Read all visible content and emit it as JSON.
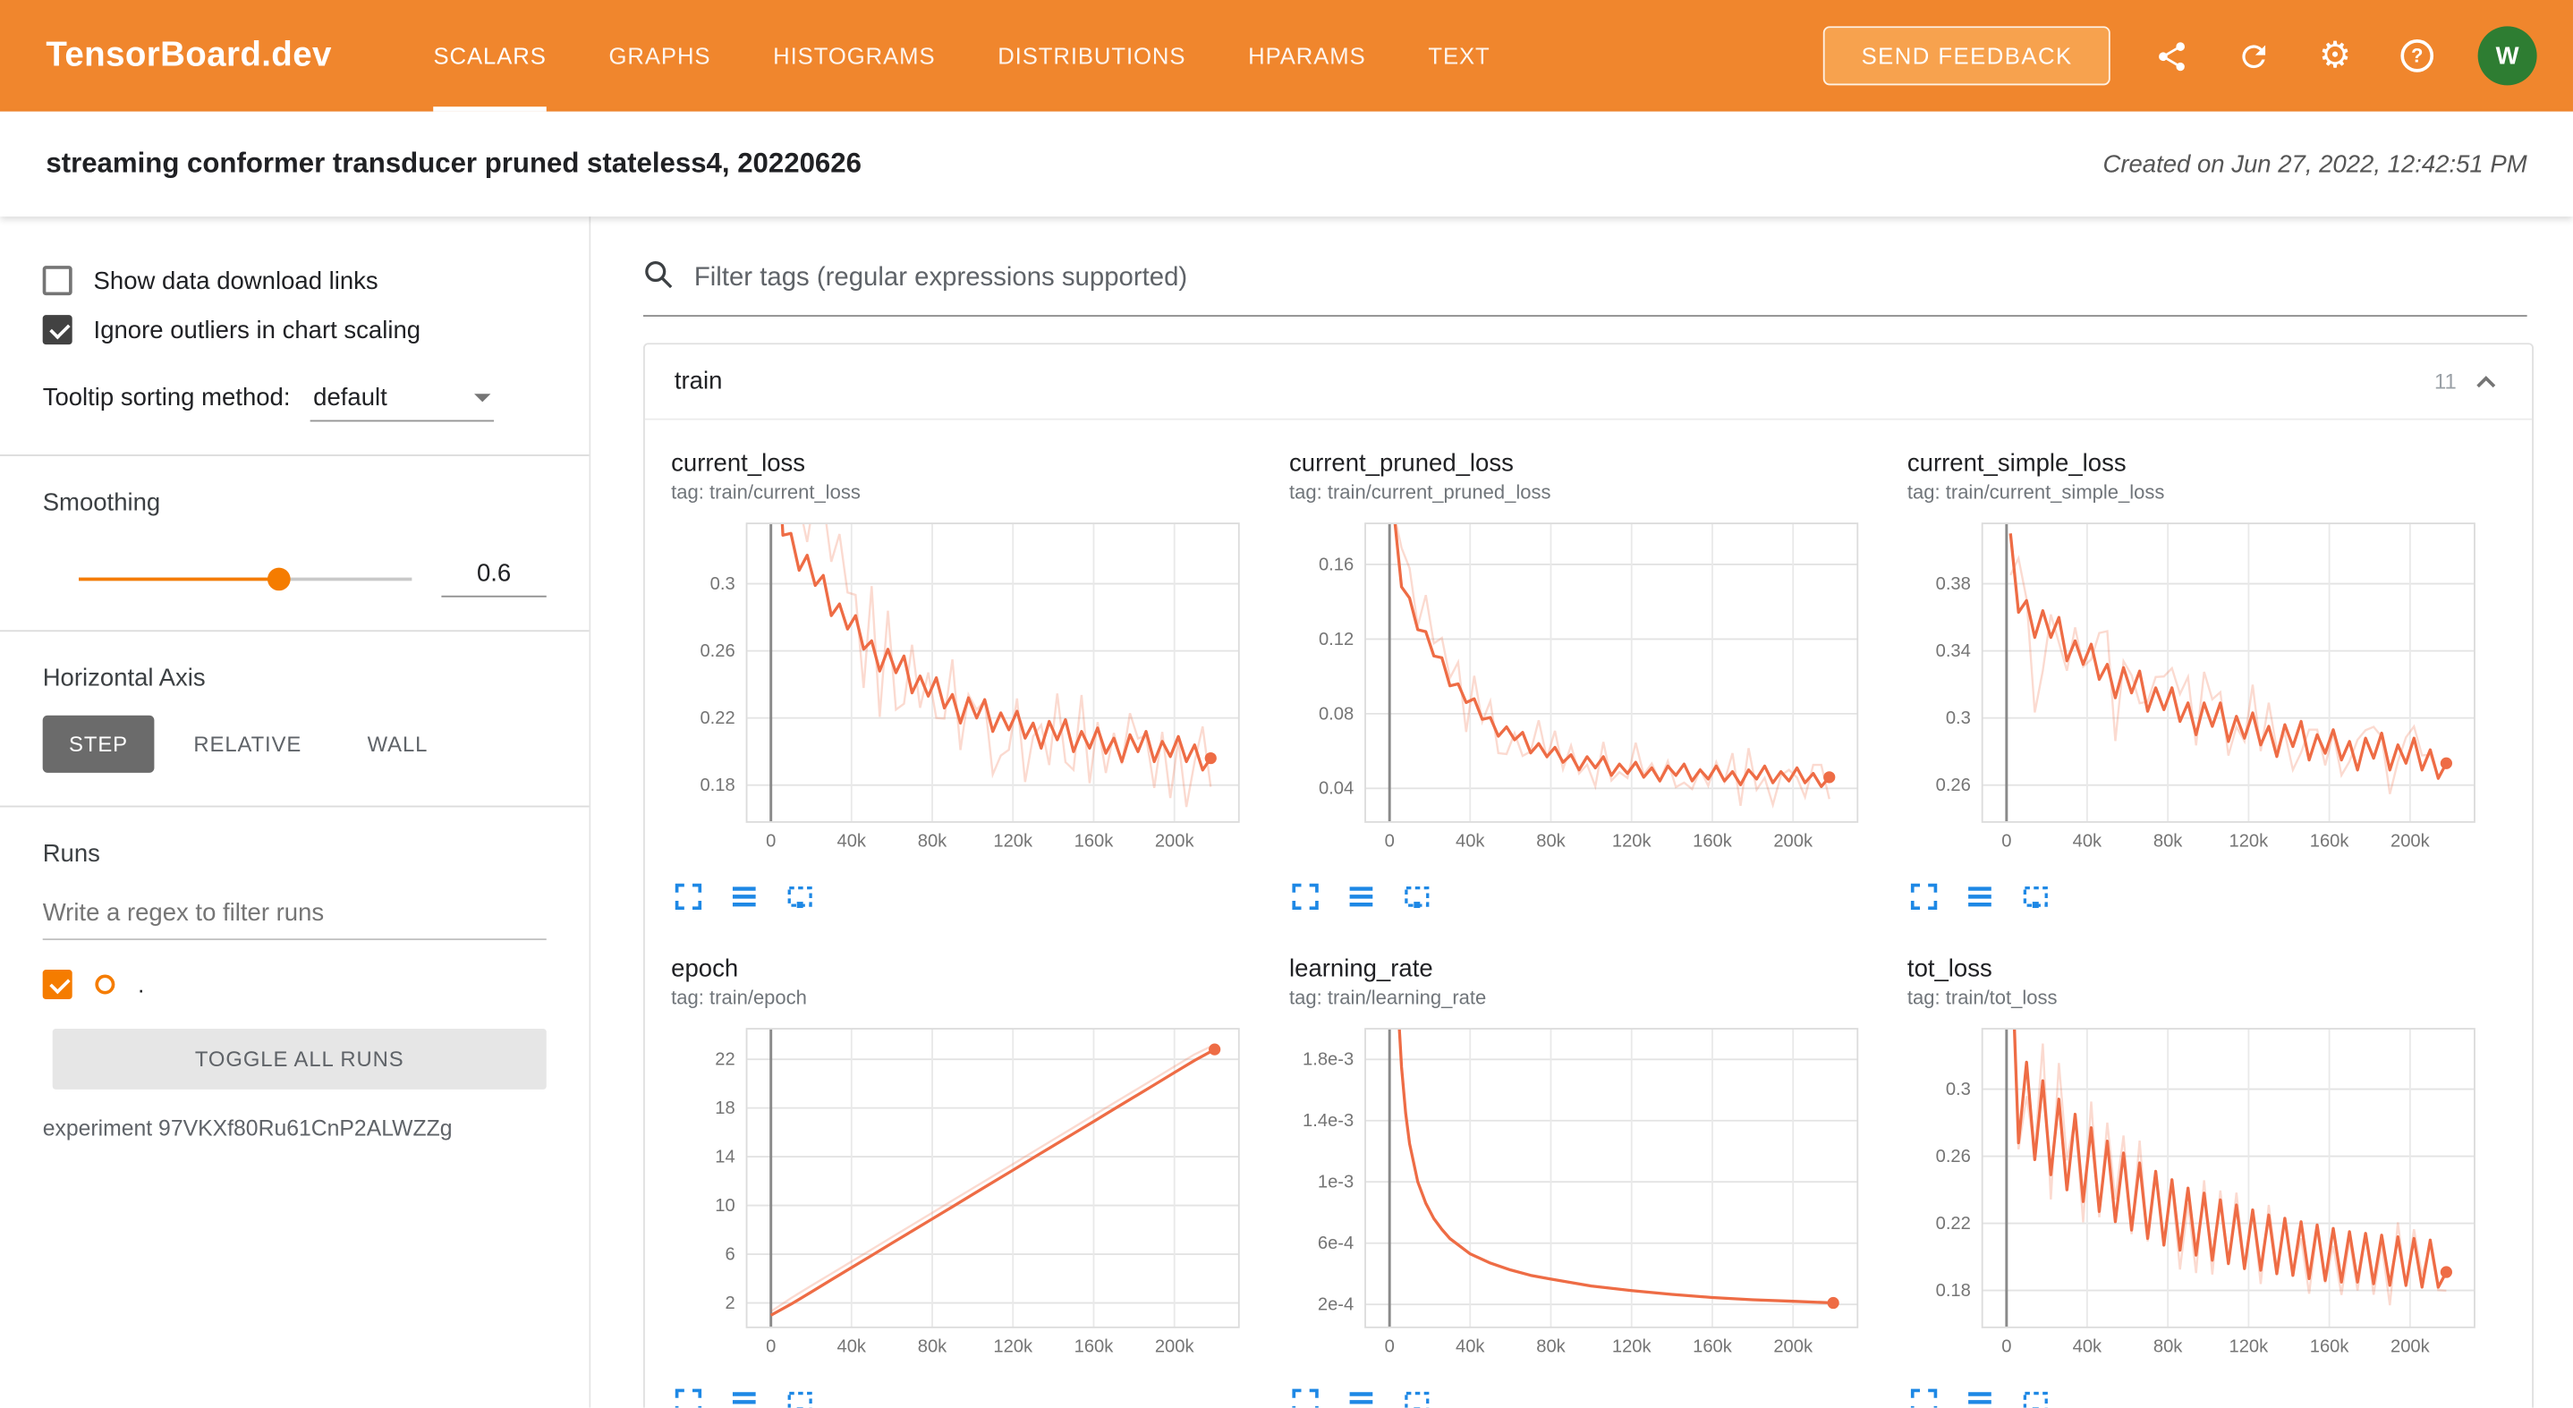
{
  "header": {
    "logo": "TensorBoard.dev",
    "tabs": [
      {
        "label": "SCALARS",
        "active": true
      },
      {
        "label": "GRAPHS",
        "active": false
      },
      {
        "label": "HISTOGRAMS",
        "active": false
      },
      {
        "label": "DISTRIBUTIONS",
        "active": false
      },
      {
        "label": "HPARAMS",
        "active": false
      },
      {
        "label": "TEXT",
        "active": false
      }
    ],
    "send_feedback": "SEND FEEDBACK",
    "icons": [
      "share-icon",
      "refresh-icon",
      "settings-icon",
      "help-icon"
    ],
    "help_glyph": "?",
    "avatar_letter": "W"
  },
  "experiment_bar": {
    "title": "streaming conformer transducer pruned stateless4, 20220626",
    "created": "Created on Jun 27, 2022, 12:42:51 PM"
  },
  "sidebar": {
    "show_download_label": "Show data download links",
    "show_download_checked": false,
    "ignore_outliers_label": "Ignore outliers in chart scaling",
    "ignore_outliers_checked": true,
    "tooltip_sort_label": "Tooltip sorting method:",
    "tooltip_sort_value": "default",
    "smoothing_label": "Smoothing",
    "smoothing_value": "0.6",
    "horizontal_axis_label": "Horizontal Axis",
    "axis_options": [
      "STEP",
      "RELATIVE",
      "WALL"
    ],
    "axis_selected": "STEP",
    "runs_label": "Runs",
    "runs_filter_placeholder": "Write a regex to filter runs",
    "run_item": {
      "name": ".",
      "checked": true
    },
    "toggle_all_label": "TOGGLE ALL RUNS",
    "experiment_id_text": "experiment 97VKXf80Ru61CnP2ALWZZg"
  },
  "main": {
    "filter_placeholder": "Filter tags (regular expressions supported)",
    "group": {
      "name": "train",
      "count": "11"
    }
  },
  "colors": {
    "header_bg": "#f0862d",
    "accent_orange": "#f57c00",
    "line": "#ee6c45",
    "toolbar_blue": "#1e88e5",
    "avatar_bg": "#2e7d32"
  },
  "chart_data": {
    "x_axis": {
      "xlim": [
        -12000,
        232000
      ],
      "ticks": [
        0,
        40000,
        80000,
        120000,
        160000,
        200000
      ],
      "labels": [
        "0",
        "40k",
        "80k",
        "120k",
        "160k",
        "200k"
      ],
      "xlabel": "step"
    },
    "toolbar_icons": [
      "expand-icon",
      "data-table-icon",
      "fit-domain-icon"
    ],
    "charts": [
      {
        "id": "current_loss",
        "type": "line",
        "title": "current_loss",
        "tag_line": "tag: train/current_loss",
        "x_start": 2000,
        "x_step": 4000,
        "values": [
          0.42,
          0.329,
          0.33,
          0.308,
          0.317,
          0.299,
          0.305,
          0.281,
          0.288,
          0.273,
          0.281,
          0.261,
          0.266,
          0.248,
          0.261,
          0.247,
          0.257,
          0.235,
          0.245,
          0.233,
          0.244,
          0.226,
          0.234,
          0.217,
          0.232,
          0.22,
          0.231,
          0.212,
          0.223,
          0.213,
          0.224,
          0.208,
          0.217,
          0.202,
          0.218,
          0.207,
          0.219,
          0.2,
          0.212,
          0.202,
          0.214,
          0.199,
          0.208,
          0.194,
          0.21,
          0.2,
          0.212,
          0.194,
          0.206,
          0.197,
          0.209,
          0.194,
          0.204,
          0.189,
          0.196
        ],
        "raw_amplitude": 0.028,
        "ylim": [
          0.158,
          0.336
        ],
        "yticks": [
          0.18,
          0.22,
          0.26,
          0.3
        ],
        "ytick_labels": [
          "0.18",
          "0.22",
          "0.26",
          "0.3"
        ],
        "end_dot": true
      },
      {
        "id": "current_pruned_loss",
        "type": "line",
        "title": "current_pruned_loss",
        "tag_line": "tag: train/current_pruned_loss",
        "x_start": 2000,
        "x_step": 4000,
        "values": [
          0.19,
          0.148,
          0.142,
          0.125,
          0.124,
          0.111,
          0.11,
          0.095,
          0.096,
          0.086,
          0.088,
          0.077,
          0.078,
          0.068,
          0.073,
          0.066,
          0.07,
          0.059,
          0.064,
          0.057,
          0.062,
          0.054,
          0.058,
          0.05,
          0.057,
          0.051,
          0.057,
          0.047,
          0.053,
          0.048,
          0.054,
          0.046,
          0.051,
          0.044,
          0.052,
          0.047,
          0.053,
          0.044,
          0.05,
          0.045,
          0.052,
          0.044,
          0.049,
          0.042,
          0.05,
          0.045,
          0.052,
          0.043,
          0.049,
          0.044,
          0.051,
          0.043,
          0.048,
          0.041,
          0.046
        ],
        "raw_amplitude": 0.012,
        "ylim": [
          0.022,
          0.182
        ],
        "yticks": [
          0.04,
          0.08,
          0.12,
          0.16
        ],
        "ytick_labels": [
          "0.04",
          "0.08",
          "0.12",
          "0.16"
        ],
        "end_dot": true
      },
      {
        "id": "current_simple_loss",
        "type": "line",
        "title": "current_simple_loss",
        "tag_line": "tag: train/current_simple_loss",
        "x_start": 2000,
        "x_step": 4000,
        "values": [
          0.41,
          0.363,
          0.37,
          0.348,
          0.364,
          0.348,
          0.36,
          0.334,
          0.346,
          0.332,
          0.344,
          0.323,
          0.332,
          0.312,
          0.33,
          0.315,
          0.328,
          0.304,
          0.318,
          0.305,
          0.318,
          0.298,
          0.309,
          0.29,
          0.309,
          0.295,
          0.309,
          0.286,
          0.301,
          0.288,
          0.303,
          0.284,
          0.295,
          0.277,
          0.296,
          0.283,
          0.298,
          0.275,
          0.29,
          0.279,
          0.293,
          0.275,
          0.286,
          0.269,
          0.288,
          0.276,
          0.291,
          0.269,
          0.284,
          0.273,
          0.288,
          0.269,
          0.281,
          0.264,
          0.273
        ],
        "raw_amplitude": 0.02,
        "ylim": [
          0.238,
          0.416
        ],
        "yticks": [
          0.26,
          0.3,
          0.34,
          0.38
        ],
        "ytick_labels": [
          "0.26",
          "0.3",
          "0.34",
          "0.38"
        ],
        "end_dot": true
      },
      {
        "id": "epoch",
        "type": "line",
        "title": "epoch",
        "tag_line": "tag: train/epoch",
        "x_start": 0,
        "x_step": 10000,
        "values": [
          1,
          1.9,
          2.9,
          3.9,
          4.9,
          5.9,
          6.9,
          7.9,
          8.9,
          9.9,
          10.9,
          11.9,
          12.9,
          13.9,
          14.9,
          15.9,
          16.9,
          17.9,
          18.9,
          19.9,
          20.9,
          21.9,
          22.8
        ],
        "raw_values": [
          1.3,
          2.4,
          3.4,
          4.4,
          5.4,
          6.4,
          7.4,
          8.4,
          9.4,
          10.4,
          11.4,
          12.4,
          13.4,
          14.4,
          15.4,
          16.4,
          17.4,
          18.4,
          19.4,
          20.4,
          21.4,
          22.4,
          23.2
        ],
        "raw_amplitude": 0,
        "ylim": [
          0,
          24.5
        ],
        "yticks": [
          2,
          6,
          10,
          14,
          18,
          22
        ],
        "ytick_labels": [
          "2",
          "6",
          "10",
          "14",
          "18",
          "22"
        ],
        "end_dot": true
      },
      {
        "id": "learning_rate",
        "type": "line",
        "title": "learning_rate",
        "tag_line": "tag: train/learning_rate",
        "x": [
          2000,
          4000,
          6000,
          8000,
          10000,
          14000,
          18000,
          22000,
          26000,
          30000,
          40000,
          50000,
          60000,
          70000,
          80000,
          100000,
          120000,
          140000,
          160000,
          180000,
          200000,
          220000
        ],
        "values": [
          0.003,
          0.0022,
          0.00175,
          0.00145,
          0.00125,
          0.001,
          0.00086,
          0.00076,
          0.00069,
          0.00063,
          0.00053,
          0.00047,
          0.000425,
          0.00039,
          0.000365,
          0.00032,
          0.00029,
          0.000265,
          0.000245,
          0.00023,
          0.00022,
          0.00021
        ],
        "raw_amplitude": 0,
        "ylim": [
          5e-05,
          0.002
        ],
        "yticks": [
          0.0002,
          0.0006,
          0.001,
          0.0014,
          0.0018
        ],
        "ytick_labels": [
          "2e-4",
          "6e-4",
          "1e-3",
          "1.4e-3",
          "1.8e-3"
        ],
        "end_dot": true
      },
      {
        "id": "tot_loss",
        "type": "line",
        "title": "tot_loss",
        "tag_line": "tag: train/tot_loss",
        "x_start": 2000,
        "x_step": 4000,
        "values": [
          0.4,
          0.268,
          0.316,
          0.258,
          0.305,
          0.249,
          0.294,
          0.24,
          0.285,
          0.233,
          0.277,
          0.227,
          0.269,
          0.221,
          0.262,
          0.216,
          0.256,
          0.211,
          0.251,
          0.207,
          0.246,
          0.204,
          0.241,
          0.201,
          0.238,
          0.198,
          0.234,
          0.196,
          0.231,
          0.193,
          0.228,
          0.192,
          0.225,
          0.19,
          0.223,
          0.189,
          0.221,
          0.187,
          0.219,
          0.186,
          0.217,
          0.185,
          0.215,
          0.185,
          0.214,
          0.184,
          0.213,
          0.183,
          0.212,
          0.183,
          0.211,
          0.182,
          0.21,
          0.182,
          0.191
        ],
        "raw_amplitude": 0.012,
        "ylim": [
          0.158,
          0.336
        ],
        "yticks": [
          0.18,
          0.22,
          0.26,
          0.3
        ],
        "ytick_labels": [
          "0.18",
          "0.22",
          "0.26",
          "0.3"
        ],
        "end_dot": true
      }
    ]
  }
}
